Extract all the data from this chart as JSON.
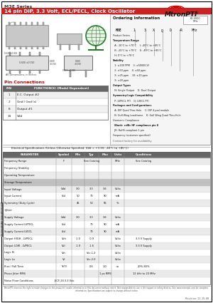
{
  "title_series": "M3E Series",
  "title_sub": "14 pin DIP, 3.3 Volt, ECL/PECL, Clock Oscillator",
  "bg_color": "#ffffff",
  "border_color": "#000000",
  "red_color": "#cc0000",
  "green_color": "#2a7a2a",
  "logo_red": "#cc0000",
  "pin_table": {
    "headers": [
      "PIN",
      "FUNCTION(S) (Model Dependent)"
    ],
    "rows": [
      [
        "1",
        "E.C. Output #2"
      ],
      [
        "2",
        "Gnd / Gnd (s)"
      ],
      [
        "8",
        "Output #1"
      ],
      [
        "14",
        "Vdd"
      ]
    ]
  },
  "ordering_title": "Ordering Information",
  "ordering_code_parts": [
    "M3E",
    "1",
    "3",
    "X",
    "Q",
    "D",
    "-R",
    "MHz"
  ],
  "ordering_labels": [
    "Product Series",
    "Temperature Range",
    "  A: -10°C to +70°C    I: -40°C to +85°C",
    "  B: -20°C to +70°C    E: -40°C to +85°C",
    "  H: 0°C to +70°C",
    "Stability",
    "  1: ±100 PPM    3: ±50000 VI",
    "  2: ±50 ppm    4: ±50 ppm",
    "  X: ±25 ppm    10: ±10 ppm",
    "  X: ±20 ppm",
    "Output Types",
    "  N: Single Output    D: Dual Output",
    "Symmetry/Logic Compatibility",
    "  P: LVPECL PTI    Q: LVECL PTI",
    "Packages and Configurations",
    "  A: DIP Quad Thru-Hole    C: DIP 4-pad module",
    "  B: Gull Wing Leadframe    K: Gull Wing Quad Thru-Hole",
    "Harmonic Compliance",
    "  Blank: ±dBc HF compliance pin II",
    "  JR: RoHS compliant 1 pin",
    "Frequency (customer specified)"
  ],
  "ordering_bold": [
    1,
    5,
    10,
    12,
    14,
    18
  ],
  "param_headers": [
    "PARAMETER",
    "Symbol",
    "Min",
    "Typ",
    "Max",
    "Units",
    "Conditions"
  ],
  "param_rows": [
    [
      "Frequency Range",
      "F",
      "",
      "See Catalog",
      "",
      "MHz",
      "See Catalog"
    ],
    [
      "Frequency Stability",
      "",
      "",
      "",
      "",
      "",
      ""
    ],
    [
      "Operating Temperature",
      "",
      "",
      "",
      "",
      "",
      ""
    ],
    [
      "Storage Temperature",
      "",
      "",
      "",
      "",
      "",
      ""
    ],
    [
      "Input Voltage",
      "Vdd",
      "3.0",
      "3.3",
      "3.6",
      "Volts",
      ""
    ],
    [
      "Input Current",
      "Idd",
      "50",
      "70",
      "90",
      "mA",
      ""
    ],
    [
      "Symmetry (Duty Cycle)",
      "",
      "45",
      "50",
      "55",
      "%",
      ""
    ],
    [
      "+Jitter",
      "",
      "",
      "",
      "",
      "",
      ""
    ],
    [
      "Supply Voltage",
      "Vdd",
      "3.0",
      "3.3",
      "3.6",
      "Volts",
      ""
    ],
    [
      "Supply Current LVPECL",
      "Idd",
      "",
      "70",
      "90",
      "mA",
      ""
    ],
    [
      "Supply Current LVECL",
      "Idd",
      "",
      "70",
      "90",
      "mA",
      ""
    ],
    [
      "Output HIGH - LVPECL",
      "Voh",
      "-1.0",
      "-0.9",
      "",
      "Volts",
      "3.3 V Supply"
    ],
    [
      "Output LOW - LVPECL",
      "Vol",
      "-1.9",
      "-1.6",
      "",
      "Volts",
      "3.3 V Supply"
    ],
    [
      "Logic Hi",
      "Vih",
      "",
      "Vcc-1.2",
      "",
      "Volts",
      ""
    ],
    [
      "Logic Lo",
      "Vil",
      "",
      "Vcc-2.0",
      "",
      "Volts",
      ""
    ],
    [
      "Rise / Fall Time",
      "Tr/Tf",
      "",
      "0.6",
      "1.0",
      "ns",
      "20%-80%"
    ],
    [
      "Phase Jitter RMS",
      "",
      "",
      "",
      "1 ps RMS",
      "",
      "12 kHz to 20 MHz"
    ],
    [
      "Noise Floor Conditions",
      "JECF-34 3.3 Vdc",
      "",
      "",
      "",
      "",
      ""
    ]
  ],
  "section_labels": [
    [
      0,
      "Electrical Specifications"
    ],
    [
      8,
      "Application Specific"
    ],
    [
      3,
      "Absolute Maximum Ratings"
    ]
  ],
  "elec_spec_title": "Electrical Specifications (Unless Otherwise Specified: Vdd = +3.3V, -40°C to +85°C)",
  "footer_text": "MtronPTI reserves the right to make changes to the product(s) and/or information in this document without notice. Not responsible for use in life support or safety devices. See www.mtronpti.com for complete information. Specifications are subject to change without notice. Consult MtronPTI for specifications per your application-specific requirements.",
  "revision": "Revision: 11-15-08"
}
